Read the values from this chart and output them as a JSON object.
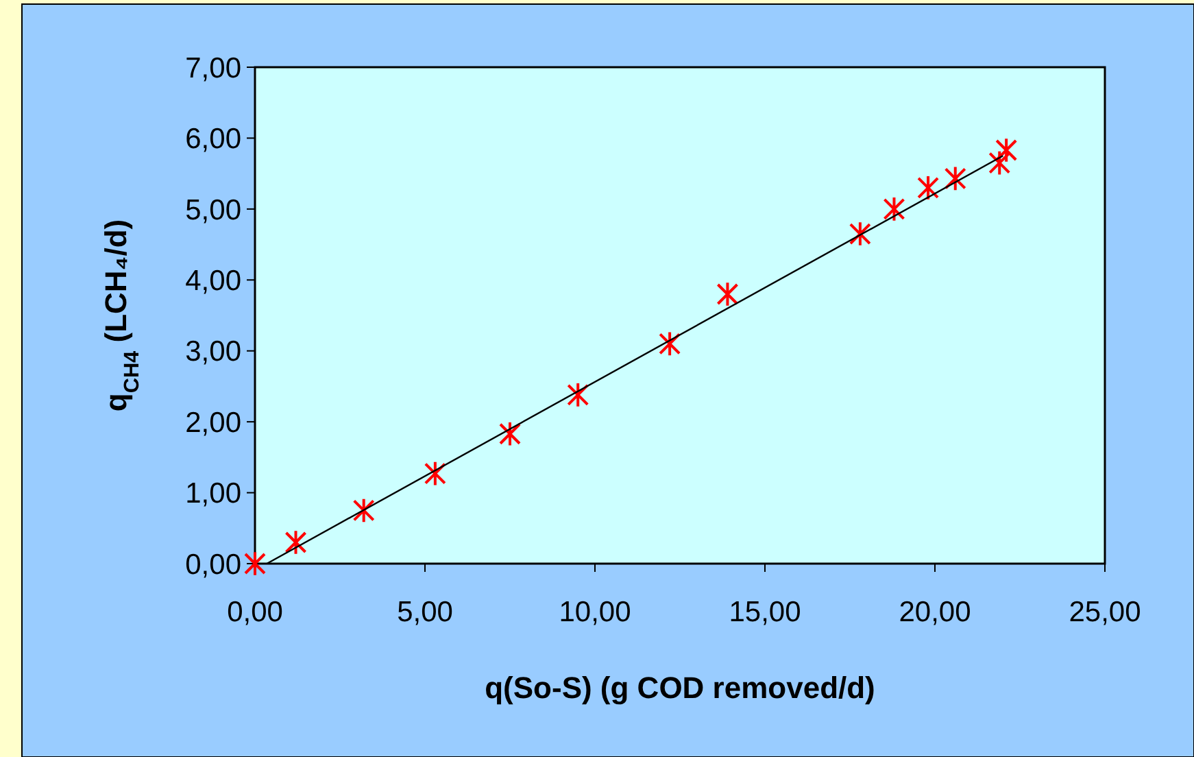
{
  "chart_data": {
    "type": "scatter",
    "xlabel": "q(So-S) (g COD removed/d)",
    "ylabel": "q$_{CH4}$ (LCH₄/d)",
    "xlim": [
      0,
      25
    ],
    "ylim": [
      0,
      7
    ],
    "xticks": [
      {
        "value": 0,
        "label": "0,00"
      },
      {
        "value": 5,
        "label": "5,00"
      },
      {
        "value": 10,
        "label": "10,00"
      },
      {
        "value": 15,
        "label": "15,00"
      },
      {
        "value": 20,
        "label": "20,00"
      },
      {
        "value": 25,
        "label": "25,00"
      }
    ],
    "yticks": [
      {
        "value": 0,
        "label": "0,00"
      },
      {
        "value": 1,
        "label": "1,00"
      },
      {
        "value": 2,
        "label": "2,00"
      },
      {
        "value": 3,
        "label": "3,00"
      },
      {
        "value": 4,
        "label": "4,00"
      },
      {
        "value": 5,
        "label": "5,00"
      },
      {
        "value": 6,
        "label": "6,00"
      },
      {
        "value": 7,
        "label": "7,00"
      }
    ],
    "grid": false,
    "marker": "cross",
    "series": [
      {
        "color": "#ff0000",
        "x": [
          0,
          1.2,
          3.2,
          5.3,
          7.5,
          9.5,
          12.2,
          13.9,
          17.8,
          18.8,
          19.8,
          20.6,
          21.9,
          22.1
        ],
        "values": [
          0,
          0.3,
          0.75,
          1.27,
          1.83,
          2.38,
          3.1,
          3.8,
          4.65,
          5.0,
          5.3,
          5.43,
          5.65,
          5.83
        ]
      },
      {
        "type": "line",
        "color": "#000000",
        "x": [
          0.35,
          22.0
        ],
        "values": [
          0,
          5.75
        ],
        "marker": "none",
        "line_style": "solid"
      }
    ]
  }
}
